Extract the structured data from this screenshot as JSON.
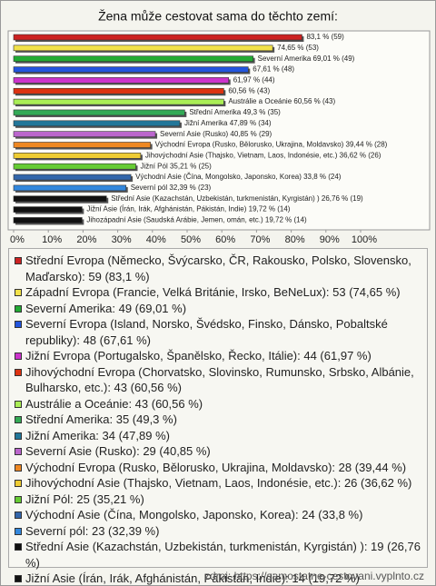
{
  "chart_data": {
    "type": "barh",
    "title": "Žena může cestovat sama do těchto zemí:",
    "categories": [
      "Střední Evropa (Německo, Švýcarsko, ČR, Rakousko, Polsko, Slovensko, Maďarsko): 59 (83,1 %)",
      "Západní Evropa (Francie, Velká Británie, Irsko, BeNeLux): 53 (74,65 %)",
      "Severní Amerika: 49 (69,01 %)",
      "Severní Evropa (Island, Norsko, Švédsko, Finsko, Dánsko, Pobaltské republiky): 48 (67,61 %)",
      "Jižní Evropa (Portugalsko, Španělsko, Řecko, Itálie): 44 (61,97 %)",
      "Jihovýchodní Evropa (Chorvatsko, Slovinsko, Rumunsko, Srbsko, Albánie, Bulharsko, etc.): 43 (60,56 %)",
      "Austrálie a Oceánie: 43 (60,56 %)",
      "Střední Amerika: 35 (49,3 %)",
      "Jižní Amerika: 34 (47,89 %)",
      "Severní Asie (Rusko): 29 (40,85 %)",
      "Východní Evropa (Rusko, Bělorusko, Ukrajina, Moldavsko): 28 (39,44 %)",
      "Jihovýchodní Asie (Thajsko, Vietnam, Laos, Indonésie, etc.): 26 (36,62 %)",
      "Jižní Pól: 25 (35,21 %)",
      "Východní Asie (Čína, Mongolsko, Japonsko, Korea): 24 (33,8 %)",
      "Severní pól: 23 (32,39 %)",
      "Střední Asie (Kazachstán, Uzbekistán, turkmenistán, Kyrgistán) ): 19 (26,76 %)",
      "Jižní Asie (Írán, Irák, Afghánistán, Pákistán, Indie): 14 (19,72 %)",
      "Jihozápadní Asie (Saudská Arábie, Jemen, omán, etc.): 14 (19,72 %)"
    ],
    "values": [
      83.1,
      74.65,
      69.01,
      67.61,
      61.97,
      60.56,
      60.56,
      49.3,
      47.89,
      40.85,
      39.44,
      36.62,
      35.21,
      33.8,
      32.39,
      26.76,
      19.72,
      19.72
    ],
    "value_labels": [
      "83,1 % (59)",
      "74,65 % (53)",
      "Severní Amerika 69,01 % (49)",
      "67,61 % (48)",
      "61,97 % (44)",
      "60,56 % (43)",
      "Austrálie a Oceánie 60,56 % (43)",
      "Střední Amerika 49,3 % (35)",
      "Jižní Amerika 47,89 % (34)",
      "Severní Asie (Rusko) 40,85 % (29)",
      "Východní Evropa (Rusko, Bělorusko, Ukrajina, Moldavsko) 39,44 % (28)",
      "Jihovýchodní Asie (Thajsko, Vietnam, Laos, Indonésie, etc.) 36,62 % (26)",
      "Jižní Pól 35,21 % (25)",
      "Východní Asie (Čína, Mongolsko, Japonsko, Korea) 33,8 % (24)",
      "Severní pól 32,39 % (23)",
      "Střední Asie (Kazachstán, Uzbekistán, turkmenistán, Kyrgistán) ) 26,76 % (19)",
      "Jižní Asie (Írán, Irák, Afghánistán, Pákistán, Indie) 19,72 % (14)",
      "Jihozápadní Asie (Saudská Arábie, Jemen, omán, etc.) 19,72 % (14)"
    ],
    "colors": [
      "#cc2222",
      "#f2e24a",
      "#22aa33",
      "#2255dd",
      "#cc33cc",
      "#dd3311",
      "#aaee55",
      "#33aa55",
      "#227799",
      "#bb66cc",
      "#ee8822",
      "#eecc33",
      "#66cc33",
      "#3366aa",
      "#3388dd",
      "#111111",
      "#111111",
      "#111111"
    ],
    "xlim": [
      0,
      100
    ],
    "xticks": [
      {
        "value": 0,
        "label": "0%"
      },
      {
        "value": 10,
        "label": "10%"
      },
      {
        "value": 20,
        "label": "20%"
      },
      {
        "value": 30,
        "label": "30%"
      },
      {
        "value": 40,
        "label": "40%"
      },
      {
        "value": 50,
        "label": "50%"
      },
      {
        "value": 60,
        "label": "60%"
      },
      {
        "value": 70,
        "label": "70%"
      },
      {
        "value": 80,
        "label": "80%"
      },
      {
        "value": 90,
        "label": "90%"
      },
      {
        "value": 100,
        "label": "100%"
      }
    ],
    "source": "zdroj: https://samostatne-cestovani.vyplnto.cz"
  }
}
